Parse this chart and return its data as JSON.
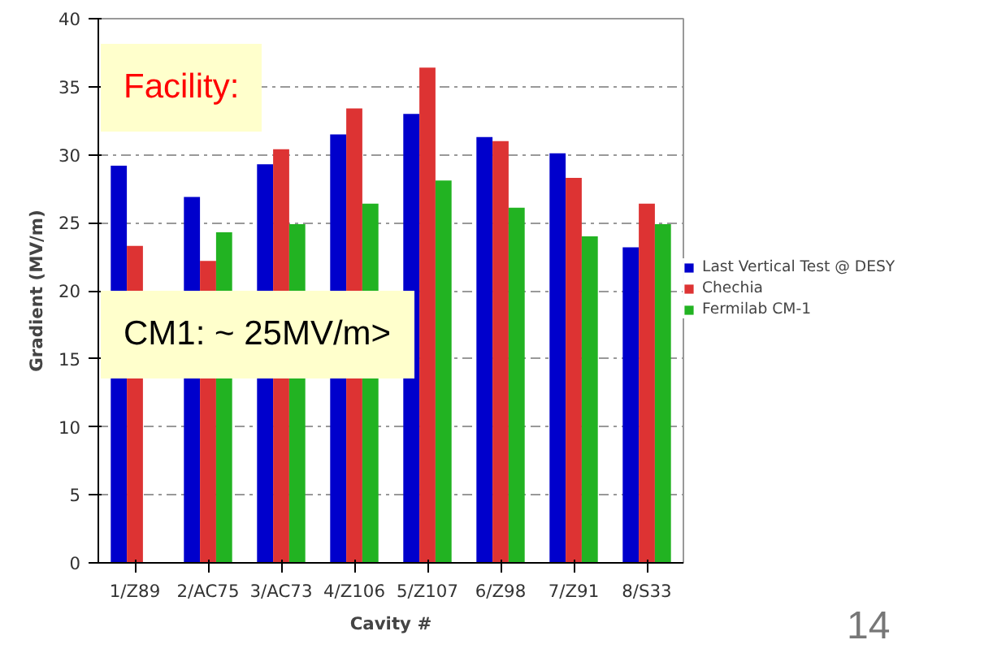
{
  "chart_data": {
    "type": "bar",
    "xlabel": "Cavity #",
    "ylabel": "Gradient (MV/m)",
    "categories": [
      "1/Z89",
      "2/AC75",
      "3/AC73",
      "4/Z106",
      "5/Z107",
      "6/Z98",
      "7/Z91",
      "8/S33"
    ],
    "series": [
      {
        "name": "Last Vertical Test @ DESY",
        "color": "#0000cc",
        "values": [
          29.2,
          26.9,
          29.3,
          31.5,
          33.0,
          31.3,
          30.1,
          23.2
        ]
      },
      {
        "name": "Chechia",
        "color": "#dd3333",
        "values": [
          23.3,
          22.2,
          30.4,
          33.4,
          36.4,
          31.0,
          28.3,
          26.4
        ]
      },
      {
        "name": "Fermilab CM-1",
        "color": "#22b322",
        "values": [
          null,
          24.3,
          24.9,
          26.4,
          28.1,
          26.1,
          24.0,
          24.9
        ]
      }
    ],
    "ylim": [
      0,
      40
    ],
    "yticks": [
      0,
      5,
      10,
      15,
      20,
      25,
      30,
      35,
      40
    ],
    "grid": "y",
    "legend": "right",
    "annotations": [
      "Facility:",
      "CM1:  ~ 25MV/m>",
      "14"
    ]
  }
}
